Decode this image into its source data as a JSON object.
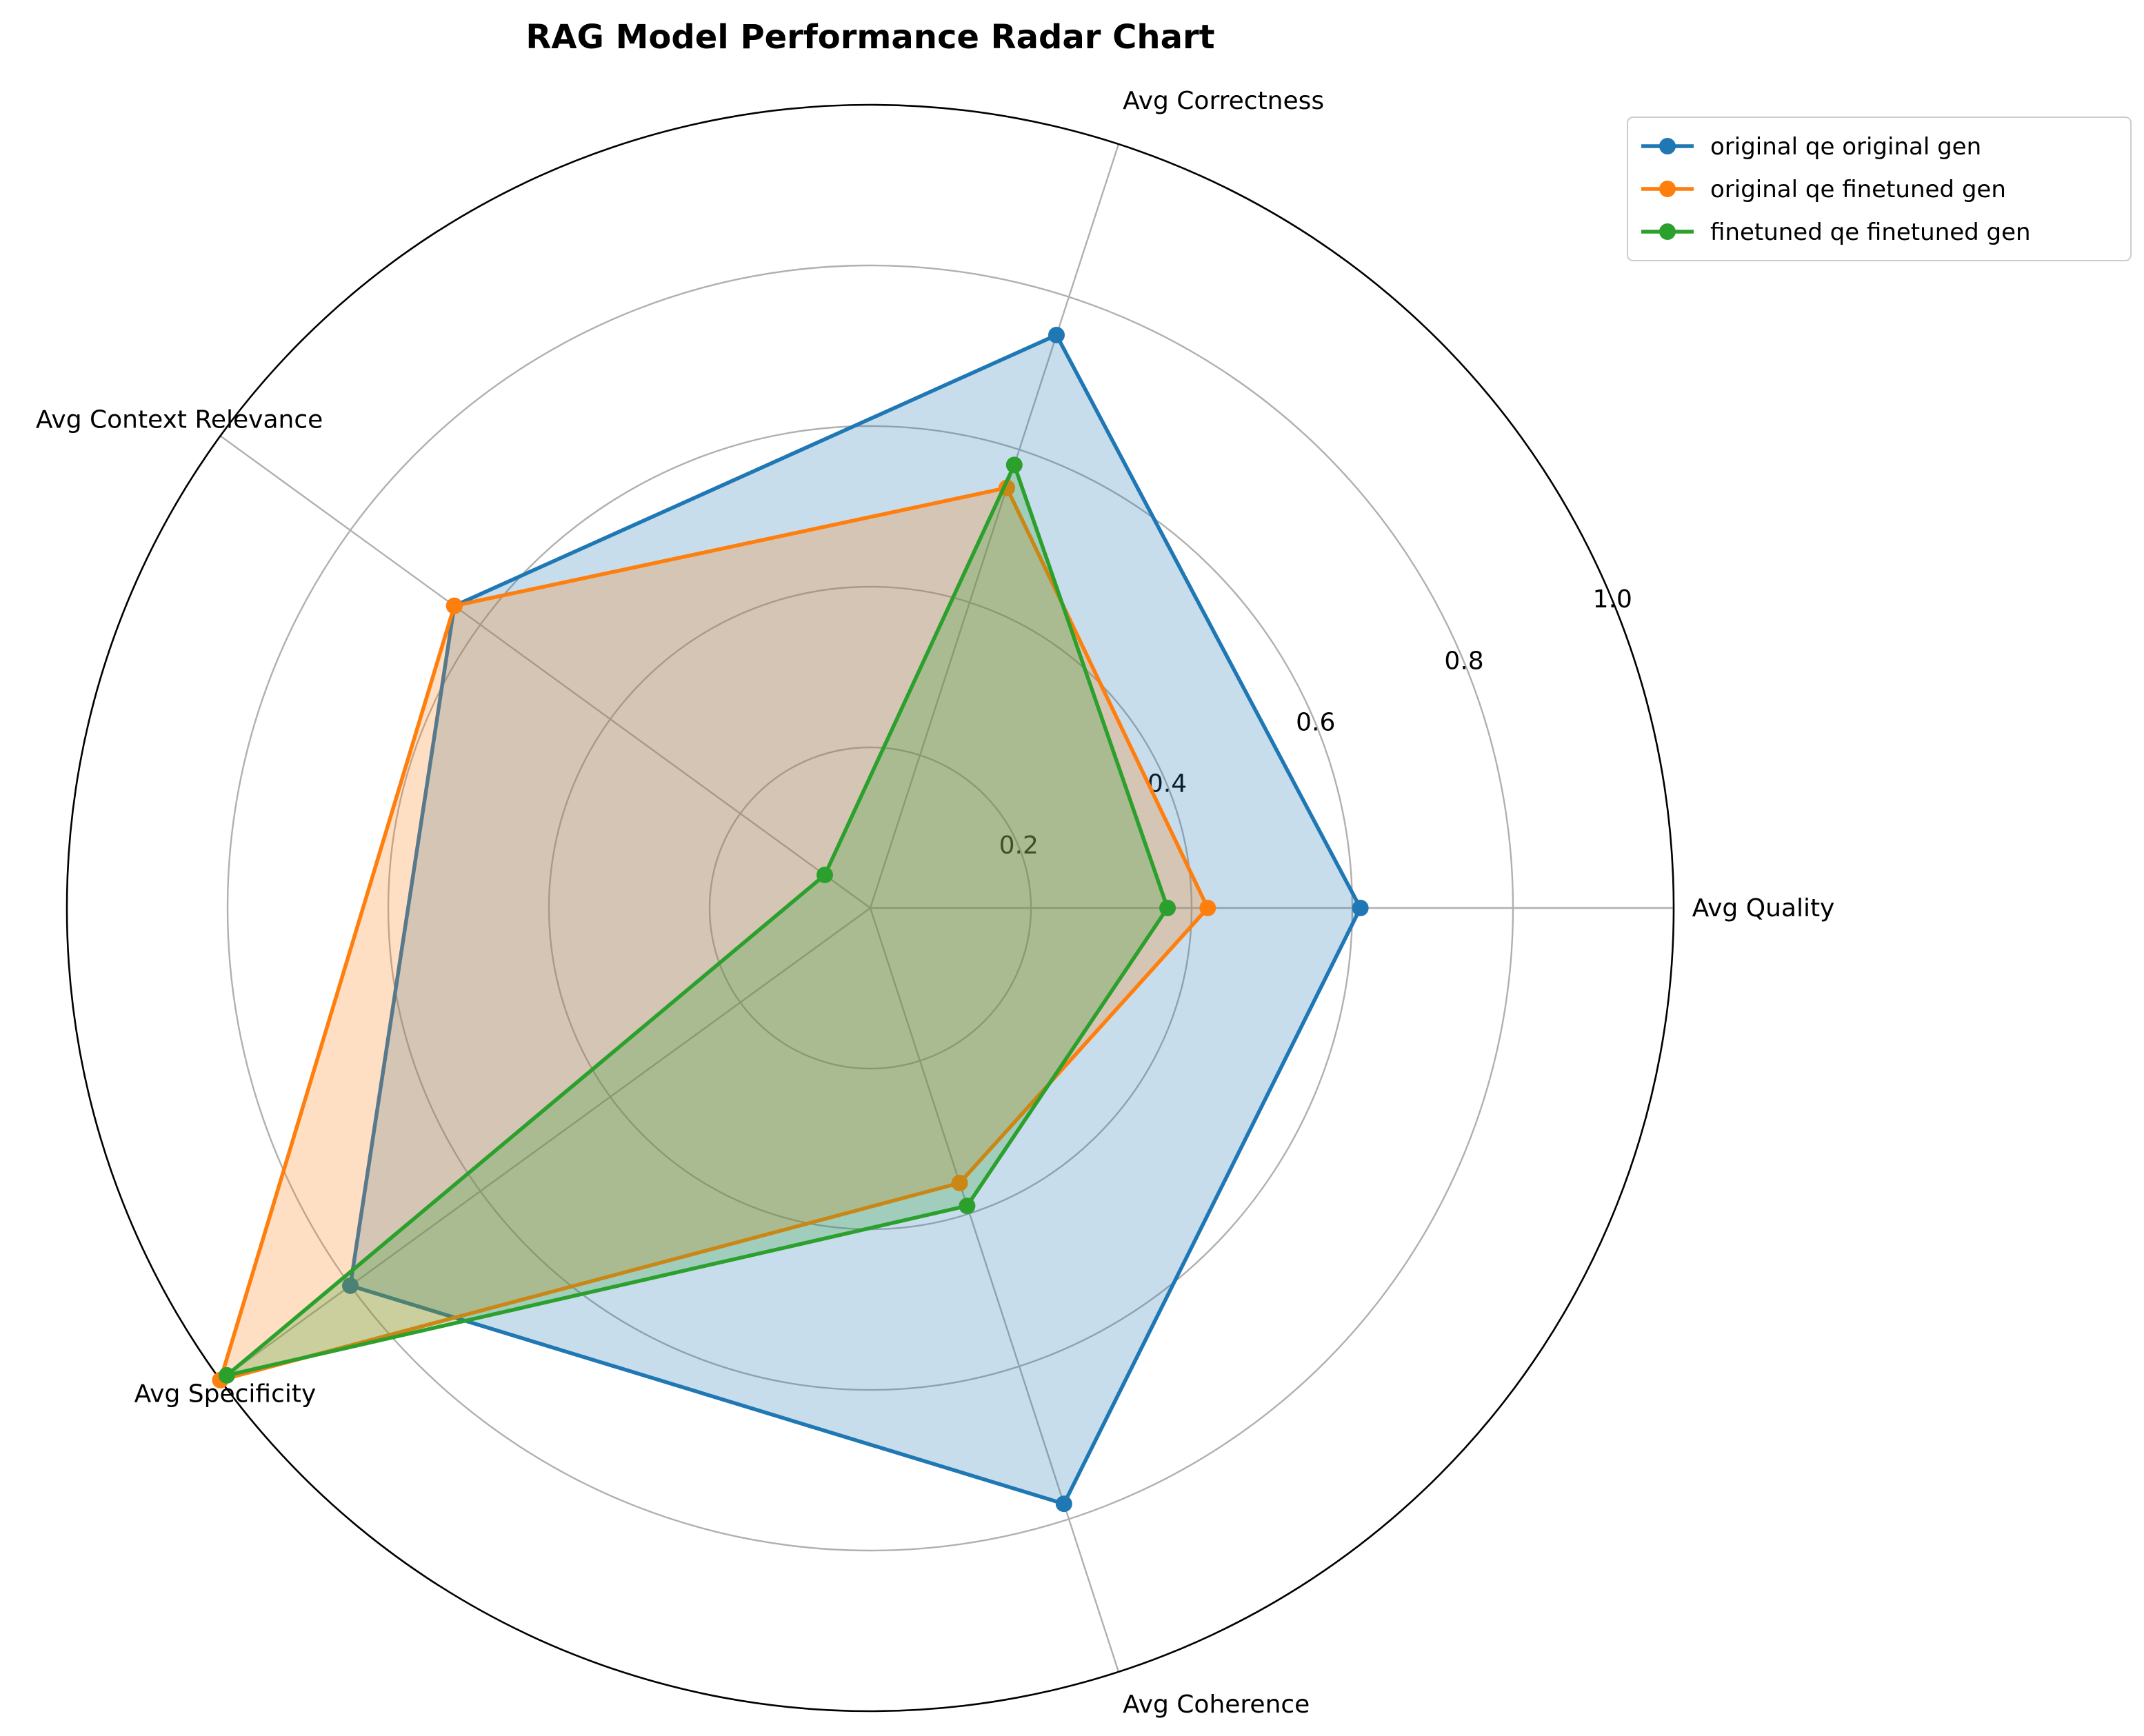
{
  "chart_data": {
    "type": "radar",
    "title": "RAG Model Performance Radar Chart",
    "categories": [
      "Avg Quality",
      "Avg Correctness",
      "Avg Context Relevance",
      "Avg Specificity",
      "Avg Coherence"
    ],
    "rlim": [
      0,
      1.0
    ],
    "rticks": [
      0.2,
      0.4,
      0.6,
      0.8,
      1.0
    ],
    "rtick_labels": [
      "0.2",
      "0.4",
      "0.6",
      "0.8",
      "1.0"
    ],
    "grid": true,
    "legend_position": "top-right (outside plot)",
    "series": [
      {
        "name": "original qe original gen",
        "color": "#1f77b4",
        "values": [
          0.61,
          0.75,
          0.64,
          0.8,
          0.78
        ]
      },
      {
        "name": "original qe finetuned gen",
        "color": "#ff7f0e",
        "values": [
          0.42,
          0.55,
          0.64,
          1.0,
          0.36
        ]
      },
      {
        "name": "finetuned qe finetuned gen",
        "color": "#2ca02c",
        "values": [
          0.37,
          0.58,
          0.07,
          0.99,
          0.39
        ]
      }
    ]
  }
}
